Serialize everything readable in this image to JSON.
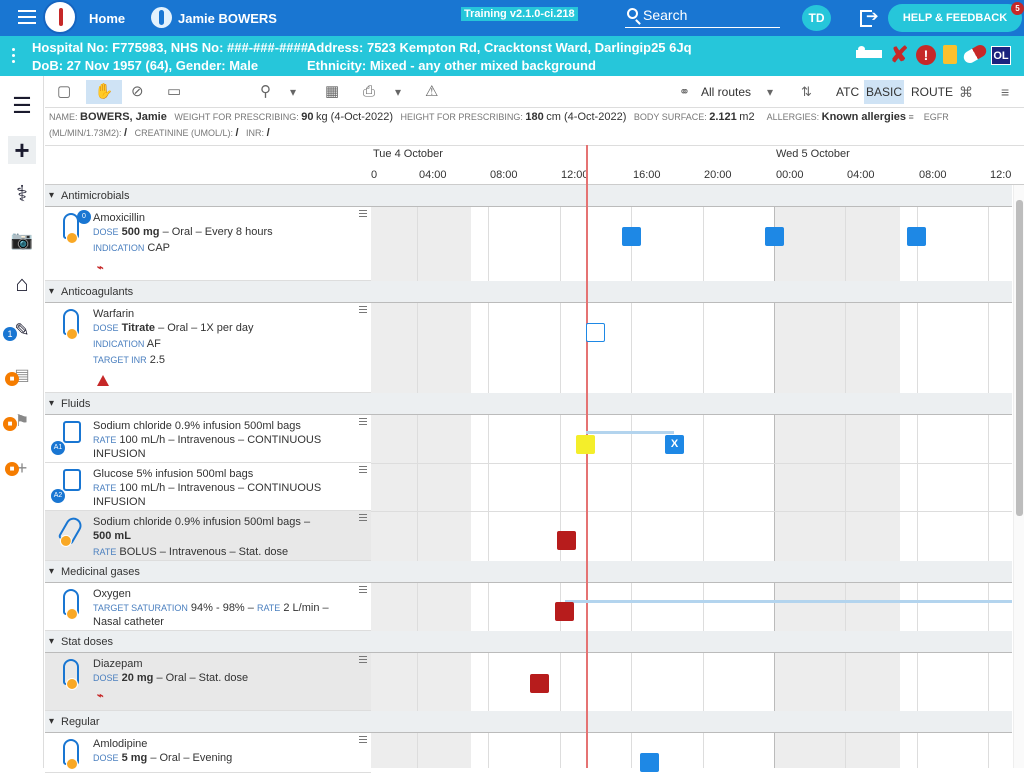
{
  "topbar": {
    "home": "Home",
    "patient": "Jamie BOWERS",
    "training": "Training v2.1.0-ci.218",
    "search": "Search",
    "user_initials": "TD",
    "help": "HELP & FEEDBACK",
    "help_count": "5"
  },
  "patient_bar": {
    "line1_left": "Hospital No: F775983, NHS No: ###-###-####",
    "line2_left": "DoB: 27 Nov 1957 (64), Gender: Male",
    "line1_right": "Address: 7523 Kempton Rd, Cracktonst Ward, Darlingip25 6Jq",
    "line2_right": "Ethnicity: Mixed - any other mixed background",
    "badge_ol": "OL"
  },
  "toolbar": {
    "routes": "All routes",
    "atc": "ATC",
    "basic": "BASIC",
    "route": "ROUTE"
  },
  "info": {
    "name_label": "NAME:",
    "name": "BOWERS, Jamie",
    "weight_label": "WEIGHT FOR PRESCRIBING:",
    "weight": "90",
    "weight_unit": "kg (4-Oct-2022)",
    "height_label": "HEIGHT FOR PRESCRIBING:",
    "height": "180",
    "height_unit": "cm (4-Oct-2022)",
    "bs_label": "BODY SURFACE:",
    "bs": "2.121",
    "bs_unit": "m2",
    "allergies_label": "ALLERGIES:",
    "allergies": "Known allergies",
    "egfr_label": "EGFR",
    "egfr_unit_label": "(ML/MIN/1.73M2):",
    "egfr_value": "/",
    "creat_label": "CREATININE (UMOL/L):",
    "creat_value": "/",
    "inr_label": "INR:",
    "inr_value": "/"
  },
  "timeline": {
    "days": [
      "Tue 4 October",
      "Wed 5 October"
    ],
    "hours": [
      "0",
      "04:00",
      "08:00",
      "12:00",
      "16:00",
      "20:00",
      "00:00",
      "04:00",
      "08:00",
      "12:0"
    ]
  },
  "sections": [
    "Antimicrobials",
    "Anticoagulants",
    "Fluids",
    "Medicinal gases",
    "Stat doses",
    "Regular"
  ],
  "meds": {
    "amox": {
      "name": "Amoxicillin",
      "badge": "0",
      "dose_lbl": "DOSE",
      "dose": "500 mg",
      "rest": "– Oral – Every 8 hours",
      "ind_lbl": "INDICATION",
      "ind": "CAP"
    },
    "warf": {
      "name": "Warfarin",
      "dose_lbl": "DOSE",
      "dose": "Titrate",
      "rest": "– Oral – 1X per day",
      "ind_lbl": "INDICATION",
      "ind": "AF",
      "inr_lbl": "TARGET INR",
      "inr": "2.5"
    },
    "nacl": {
      "name": "Sodium chloride 0.9% infusion 500ml bags",
      "rate_lbl": "RATE",
      "rate": "100 mL/h – Intravenous – CONTINUOUS",
      "rate2": "INFUSION",
      "badge": "A1",
      "xlabel": "X"
    },
    "gluc": {
      "name": "Glucose 5% infusion 500ml bags",
      "rate_lbl": "RATE",
      "rate": "100 mL/h – Intravenous – CONTINUOUS",
      "rate2": "INFUSION",
      "badge": "A2"
    },
    "bolus": {
      "name": "Sodium chloride 0.9% infusion 500ml bags –",
      "name2": "500 mL",
      "rate_lbl": "RATE",
      "rate": "BOLUS – Intravenous – Stat. dose"
    },
    "oxy": {
      "name": "Oxygen",
      "sat_lbl": "TARGET SATURATION",
      "sat": "94% - 98% –",
      "rate_lbl": "RATE",
      "rate": "2 L/min –",
      "rate2": "Nasal catheter"
    },
    "diaz": {
      "name": "Diazepam",
      "dose_lbl": "DOSE",
      "dose": "20 mg",
      "rest": "– Oral – Stat. dose"
    },
    "amlo": {
      "name": "Amlodipine",
      "dose_lbl": "DOSE",
      "dose": "5 mg",
      "rest": "– Oral – Evening"
    }
  }
}
